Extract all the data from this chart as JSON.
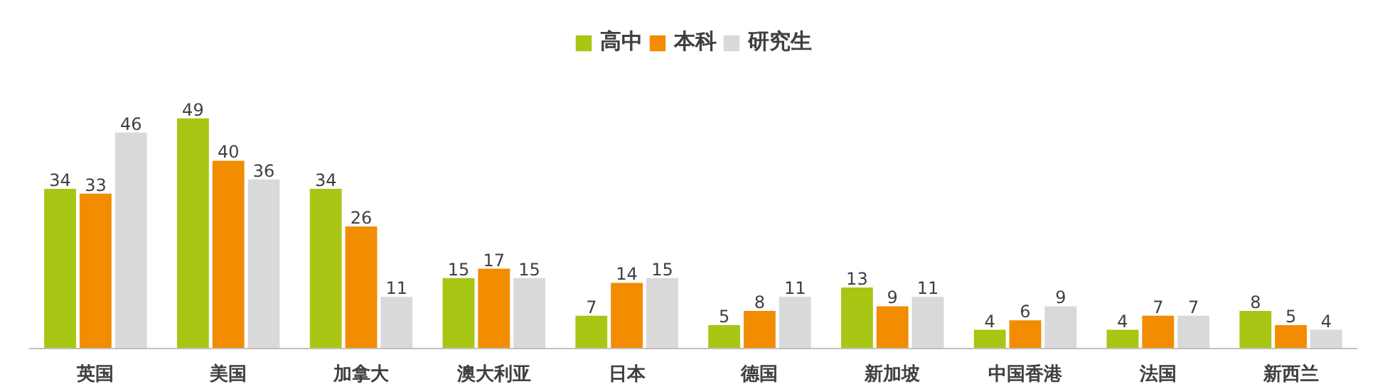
{
  "chart_data": {
    "type": "bar",
    "categories": [
      "英国",
      "美国",
      "加拿大",
      "澳大利亚",
      "日本",
      "德国",
      "新加坡",
      "中国香港",
      "法国",
      "新西兰"
    ],
    "series": [
      {
        "name": "高中",
        "color": "#a8c614",
        "values": [
          34,
          49,
          34,
          15,
          7,
          5,
          13,
          4,
          4,
          8
        ]
      },
      {
        "name": "本科",
        "color": "#f28c00",
        "values": [
          33,
          40,
          26,
          17,
          14,
          8,
          9,
          6,
          7,
          5
        ]
      },
      {
        "name": "研究生",
        "color": "#d9d9d9",
        "values": [
          46,
          36,
          11,
          15,
          15,
          11,
          11,
          9,
          7,
          4
        ]
      }
    ],
    "data_labels": true,
    "legend": "top",
    "grid": false
  }
}
